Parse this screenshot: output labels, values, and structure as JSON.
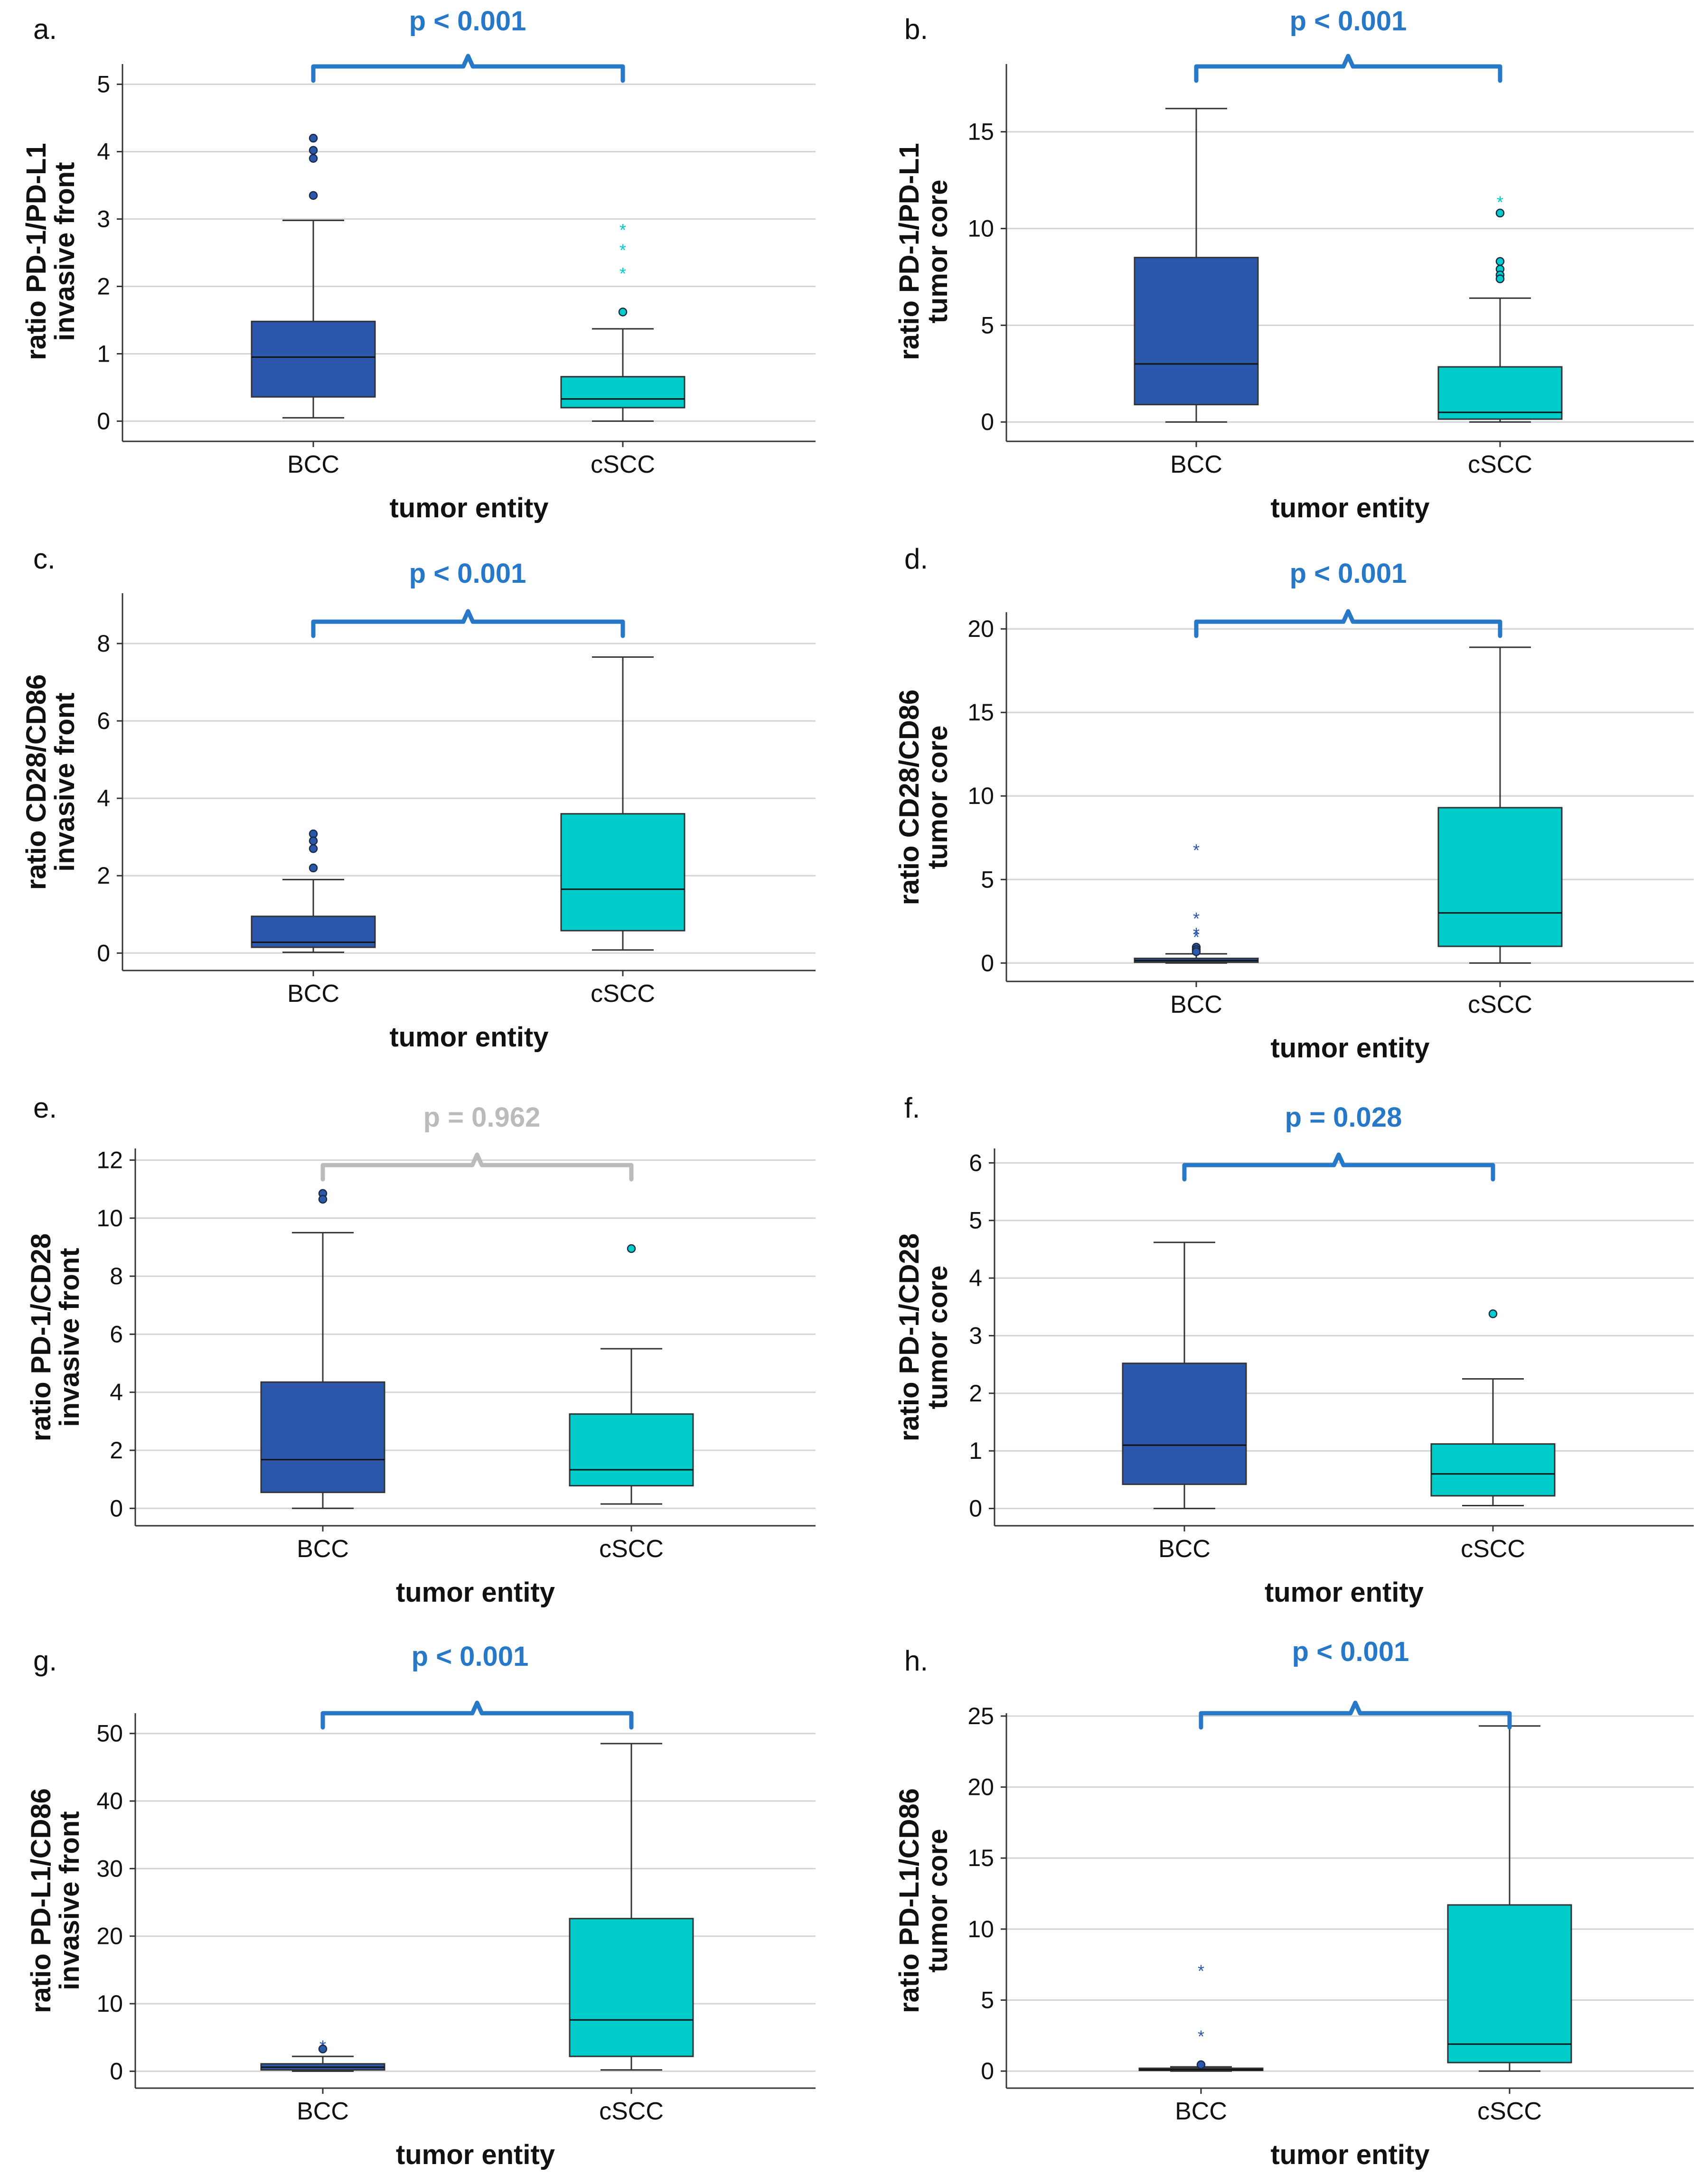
{
  "colors": {
    "bcc": "#2b58ab",
    "cscc": "#00cccc",
    "significant": "#2878c8",
    "not_significant": "#bbbbbb",
    "axis": "#333333",
    "grid": "#d4d4d4",
    "text": "#111111"
  },
  "chart_data": [
    {
      "panel": "a.",
      "type": "boxplot",
      "ylabel_line1": "ratio PD-1/PD-L1",
      "ylabel_line2": "invasive front",
      "xlabel": "tumor entity",
      "ylim": [
        -0.3,
        5.3
      ],
      "yticks": [
        0,
        1,
        2,
        3,
        4,
        5
      ],
      "p_label": "p < 0.001",
      "significant": true,
      "groups": [
        {
          "category": "BCC",
          "min": 0.05,
          "q1": 0.36,
          "median": 0.95,
          "q3": 1.48,
          "max": 2.98,
          "outliers": [
            {
              "v": 4.2,
              "m": "o"
            },
            {
              "v": 4.02,
              "m": "o"
            },
            {
              "v": 3.9,
              "m": "o"
            },
            {
              "v": 3.35,
              "m": "o"
            }
          ]
        },
        {
          "category": "cSCC",
          "min": 0.0,
          "q1": 0.2,
          "median": 0.33,
          "q3": 0.66,
          "max": 1.37,
          "outliers": [
            {
              "v": 2.85,
              "m": "*"
            },
            {
              "v": 2.55,
              "m": "*"
            },
            {
              "v": 2.2,
              "m": "*"
            },
            {
              "v": 1.62,
              "m": "o"
            }
          ]
        }
      ]
    },
    {
      "panel": "b.",
      "type": "boxplot",
      "ylabel_line1": "ratio PD-1/PD-L1",
      "ylabel_line2": "tumor core",
      "xlabel": "tumor entity",
      "ylim": [
        -1,
        18.5
      ],
      "yticks": [
        0,
        5,
        10,
        15
      ],
      "p_label": "p < 0.001",
      "significant": true,
      "groups": [
        {
          "category": "BCC",
          "min": 0.0,
          "q1": 0.9,
          "median": 3.0,
          "q3": 8.5,
          "max": 16.2,
          "outliers": []
        },
        {
          "category": "cSCC",
          "min": 0.0,
          "q1": 0.15,
          "median": 0.5,
          "q3": 2.85,
          "max": 6.4,
          "outliers": [
            {
              "v": 11.4,
              "m": "*"
            },
            {
              "v": 10.8,
              "m": "o"
            },
            {
              "v": 8.3,
              "m": "o"
            },
            {
              "v": 7.9,
              "m": "o"
            },
            {
              "v": 7.6,
              "m": "o"
            },
            {
              "v": 7.4,
              "m": "o"
            }
          ]
        }
      ]
    },
    {
      "panel": "c.",
      "type": "boxplot",
      "ylabel_line1": "ratio CD28/CD86",
      "ylabel_line2": "invasive front",
      "xlabel": "tumor entity",
      "ylim": [
        -0.45,
        9.3
      ],
      "yticks": [
        0,
        2,
        4,
        6,
        8
      ],
      "p_label": "p < 0.001",
      "significant": true,
      "groups": [
        {
          "category": "BCC",
          "min": 0.02,
          "q1": 0.15,
          "median": 0.28,
          "q3": 0.95,
          "max": 1.9,
          "outliers": [
            {
              "v": 3.08,
              "m": "o"
            },
            {
              "v": 2.9,
              "m": "o"
            },
            {
              "v": 2.7,
              "m": "o"
            },
            {
              "v": 2.2,
              "m": "o"
            }
          ]
        },
        {
          "category": "cSCC",
          "min": 0.08,
          "q1": 0.58,
          "median": 1.65,
          "q3": 3.6,
          "max": 7.65,
          "outliers": []
        }
      ]
    },
    {
      "panel": "d.",
      "type": "boxplot",
      "ylabel_line1": "ratio CD28/CD86",
      "ylabel_line2": "tumor core",
      "xlabel": "tumor entity",
      "ylim": [
        -1.1,
        21
      ],
      "yticks": [
        0,
        5,
        10,
        15,
        20
      ],
      "p_label": "p < 0.001",
      "significant": true,
      "groups": [
        {
          "category": "BCC",
          "min": 0.0,
          "q1": 0.05,
          "median": 0.15,
          "q3": 0.28,
          "max": 0.55,
          "outliers": [
            {
              "v": 6.8,
              "m": "*"
            },
            {
              "v": 2.7,
              "m": "*"
            },
            {
              "v": 1.8,
              "m": "*"
            },
            {
              "v": 1.6,
              "m": "*"
            },
            {
              "v": 0.95,
              "m": "o"
            },
            {
              "v": 0.8,
              "m": "o"
            },
            {
              "v": 0.68,
              "m": "o"
            }
          ]
        },
        {
          "category": "cSCC",
          "min": 0.0,
          "q1": 1.0,
          "median": 3.0,
          "q3": 9.3,
          "max": 18.9,
          "outliers": []
        }
      ]
    },
    {
      "panel": "e.",
      "type": "boxplot",
      "ylabel_line1": "ratio PD-1/CD28",
      "ylabel_line2": "invasive front",
      "xlabel": "tumor entity",
      "ylim": [
        -0.6,
        12.4
      ],
      "yticks": [
        0,
        2,
        4,
        6,
        8,
        10,
        12
      ],
      "p_label": "p = 0.962",
      "significant": false,
      "groups": [
        {
          "category": "BCC",
          "min": 0.0,
          "q1": 0.55,
          "median": 1.68,
          "q3": 4.35,
          "max": 9.5,
          "outliers": [
            {
              "v": 10.85,
              "m": "o"
            },
            {
              "v": 10.65,
              "m": "o"
            }
          ]
        },
        {
          "category": "cSCC",
          "min": 0.15,
          "q1": 0.78,
          "median": 1.33,
          "q3": 3.25,
          "max": 5.5,
          "outliers": [
            {
              "v": 8.95,
              "m": "o"
            }
          ]
        }
      ]
    },
    {
      "panel": "f.",
      "type": "boxplot",
      "ylabel_line1": "ratio PD-1/CD28",
      "ylabel_line2": "tumor core",
      "xlabel": "tumor entity",
      "ylim": [
        -0.3,
        6.25
      ],
      "yticks": [
        0,
        1,
        2,
        3,
        4,
        5,
        6
      ],
      "p_label": "p = 0.028",
      "significant": true,
      "groups": [
        {
          "category": "BCC",
          "min": 0.0,
          "q1": 0.42,
          "median": 1.1,
          "q3": 2.52,
          "max": 4.62,
          "outliers": []
        },
        {
          "category": "cSCC",
          "min": 0.05,
          "q1": 0.22,
          "median": 0.6,
          "q3": 1.12,
          "max": 2.25,
          "outliers": [
            {
              "v": 3.38,
              "m": "o"
            }
          ]
        }
      ]
    },
    {
      "panel": "g.",
      "type": "boxplot",
      "ylabel_line1": "ratio PD-L1/CD86",
      "ylabel_line2": "invasive front",
      "xlabel": "tumor entity",
      "ylim": [
        -2.5,
        53
      ],
      "yticks": [
        0,
        10,
        20,
        30,
        40,
        50
      ],
      "p_label": "p < 0.001",
      "significant": true,
      "groups": [
        {
          "category": "BCC",
          "min": 0.0,
          "q1": 0.2,
          "median": 0.6,
          "q3": 1.1,
          "max": 2.2,
          "outliers": [
            {
              "v": 3.8,
              "m": "*"
            },
            {
              "v": 3.3,
              "m": "o"
            }
          ]
        },
        {
          "category": "cSCC",
          "min": 0.2,
          "q1": 2.2,
          "median": 7.6,
          "q3": 22.6,
          "max": 48.5,
          "outliers": []
        }
      ]
    },
    {
      "panel": "h.",
      "type": "boxplot",
      "ylabel_line1": "ratio PD-L1/CD86",
      "ylabel_line2": "tumor core",
      "xlabel": "tumor entity",
      "ylim": [
        -1.2,
        25.2
      ],
      "yticks": [
        0,
        5,
        10,
        15,
        20,
        25
      ],
      "p_label": "p < 0.001",
      "significant": true,
      "groups": [
        {
          "category": "BCC",
          "min": 0.0,
          "q1": 0.05,
          "median": 0.1,
          "q3": 0.2,
          "max": 0.3,
          "outliers": [
            {
              "v": 7.1,
              "m": "*"
            },
            {
              "v": 2.5,
              "m": "*"
            },
            {
              "v": 0.45,
              "m": "o"
            }
          ]
        },
        {
          "category": "cSCC",
          "min": 0.0,
          "q1": 0.6,
          "median": 1.9,
          "q3": 11.7,
          "max": 24.3,
          "outliers": []
        }
      ]
    }
  ]
}
